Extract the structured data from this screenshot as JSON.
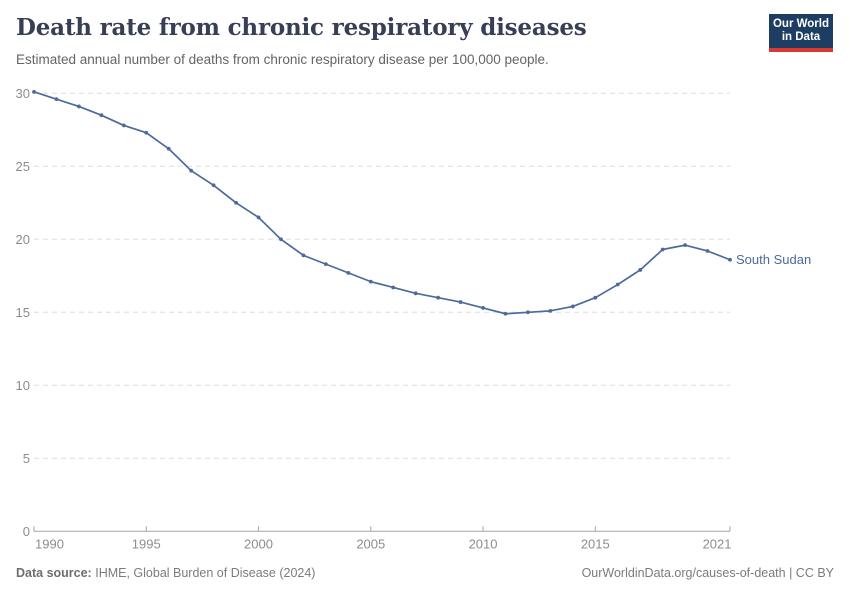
{
  "header": {
    "title": "Death rate from chronic respiratory diseases",
    "subtitle": "Estimated annual number of deaths from chronic respiratory disease per 100,000 people.",
    "logo": {
      "line1": "Our World",
      "line2": "in Data"
    }
  },
  "chart_data": {
    "type": "line",
    "title": "Death rate from chronic respiratory diseases",
    "x": [
      1990,
      1991,
      1992,
      1993,
      1994,
      1995,
      1996,
      1997,
      1998,
      1999,
      2000,
      2001,
      2002,
      2003,
      2004,
      2005,
      2006,
      2007,
      2008,
      2009,
      2010,
      2011,
      2012,
      2013,
      2014,
      2015,
      2016,
      2017,
      2018,
      2019,
      2020,
      2021
    ],
    "series": [
      {
        "name": "South Sudan",
        "color": "#4C6A9C",
        "values": [
          30.1,
          29.6,
          29.1,
          28.5,
          27.8,
          27.3,
          26.2,
          24.7,
          23.7,
          22.5,
          21.5,
          20.0,
          18.9,
          18.3,
          17.7,
          17.1,
          16.7,
          16.3,
          16.0,
          15.7,
          15.3,
          14.9,
          15.0,
          15.1,
          15.4,
          16.0,
          16.9,
          17.9,
          19.3,
          19.6,
          19.2,
          18.6
        ]
      }
    ],
    "xlabel": "",
    "ylabel": "",
    "xlim": [
      1990,
      2021
    ],
    "ylim": [
      0,
      30
    ],
    "x_ticks": [
      1990,
      1995,
      2000,
      2005,
      2010,
      2015,
      2021
    ],
    "y_ticks": [
      0,
      5,
      10,
      15,
      20,
      25,
      30
    ],
    "grid": "horizontal-dashed",
    "legend": "end-of-line-label"
  },
  "footer": {
    "source_label": "Data source:",
    "source_text": "IHME, Global Burden of Disease (2024)",
    "credit": "OurWorldinData.org/causes-of-death | CC BY"
  },
  "colors": {
    "series": "#4C6A9C",
    "title": "#383e56",
    "subtitle": "#646464",
    "axis_label": "#8d8d8d",
    "gridline": "#dedede",
    "axis_line": "#a5a5a5",
    "logo_bg": "#1d3d63",
    "logo_red": "#d93b32"
  }
}
